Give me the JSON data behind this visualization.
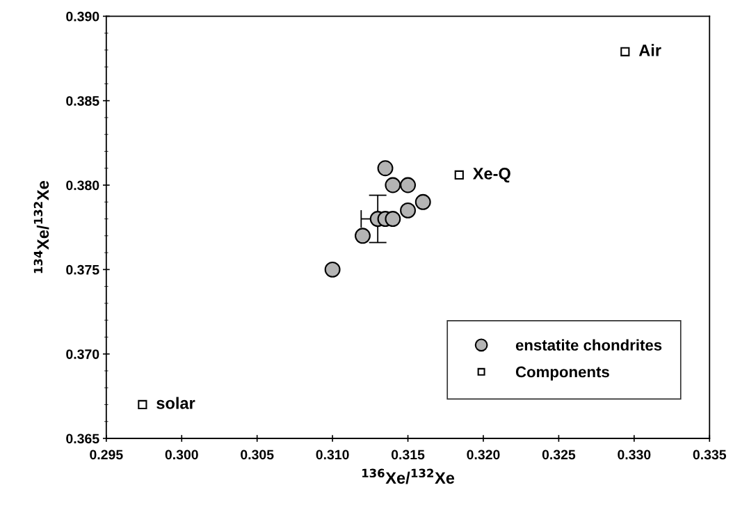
{
  "chart_data": {
    "type": "scatter",
    "xlabel": "$^{136}$Xe/$^{132}$Xe",
    "ylabel": "$^{134}$Xe/$^{132}$Xe",
    "xlim": [
      0.295,
      0.335
    ],
    "xticks": [
      {
        "value": 0.295,
        "label": "0.295"
      },
      {
        "value": 0.3,
        "label": "0.300"
      },
      {
        "value": 0.305,
        "label": "0.305"
      },
      {
        "value": 0.31,
        "label": "0.310"
      },
      {
        "value": 0.315,
        "label": "0.315"
      },
      {
        "value": 0.32,
        "label": "0.320"
      },
      {
        "value": 0.325,
        "label": "0.325"
      },
      {
        "value": 0.33,
        "label": "0.330"
      },
      {
        "value": 0.335,
        "label": "0.335"
      }
    ],
    "ylim": [
      0.365,
      0.39
    ],
    "yticks": [
      {
        "value": 0.365,
        "label": "0.365"
      },
      {
        "value": 0.37,
        "label": "0.370"
      },
      {
        "value": 0.375,
        "label": "0.375"
      },
      {
        "value": 0.38,
        "label": "0.380"
      },
      {
        "value": 0.385,
        "label": "0.385"
      },
      {
        "value": 0.39,
        "label": "0.390"
      }
    ],
    "grid": false,
    "legend": "bottom right",
    "series": [
      {
        "name": "enstatite chondrites",
        "marker": "circle",
        "color": "#b4b4b4",
        "x": [
          0.3135,
          0.314,
          0.315,
          0.316,
          0.315,
          0.313,
          0.3135,
          0.314,
          0.312,
          0.31
        ],
        "values": [
          0.381,
          0.38,
          0.38,
          0.379,
          0.3785,
          0.378,
          0.378,
          0.378,
          0.377,
          0.375
        ],
        "errors": [
          null,
          null,
          null,
          null,
          null,
          0.0014,
          null,
          null,
          null,
          null
        ],
        "xerrors": [
          null,
          null,
          null,
          null,
          null,
          [
            0.3119,
            0.313
          ],
          null,
          null,
          null,
          null
        ]
      },
      {
        "name": "Components",
        "marker": "square",
        "color": "#ffffff",
        "x": [
          0.2974,
          0.3184,
          0.3294
        ],
        "values": [
          0.367,
          0.3806,
          0.3879
        ]
      }
    ],
    "annotations": [
      {
        "text": "solar",
        "x": 0.2974,
        "y": 0.367
      },
      {
        "text": "Xe-Q",
        "x": 0.3184,
        "y": 0.3806
      },
      {
        "text": "Air",
        "x": 0.3294,
        "y": 0.3879
      }
    ]
  }
}
